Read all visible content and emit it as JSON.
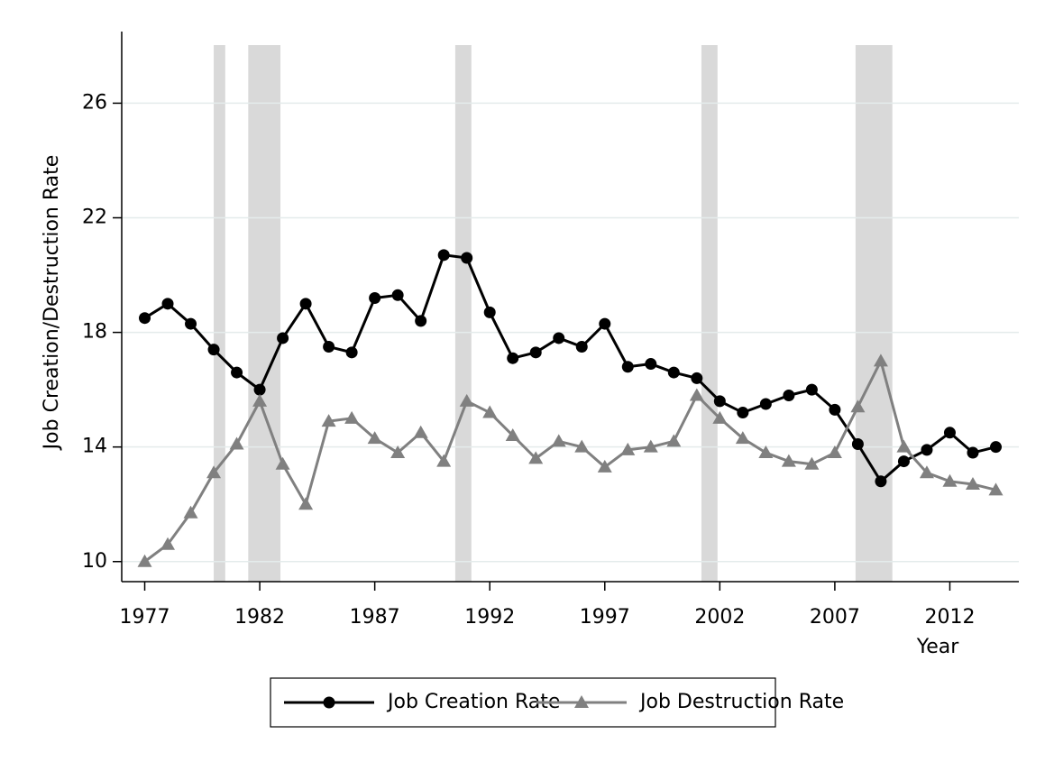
{
  "chart_data": {
    "type": "line",
    "y_label": "Job Creation/Destruction Rate",
    "x_label": "Year",
    "x": [
      1977,
      1978,
      1979,
      1980,
      1981,
      1982,
      1983,
      1984,
      1985,
      1986,
      1987,
      1988,
      1989,
      1990,
      1991,
      1992,
      1993,
      1994,
      1995,
      1996,
      1997,
      1998,
      1999,
      2000,
      2001,
      2002,
      2003,
      2004,
      2005,
      2006,
      2007,
      2008,
      2009,
      2010,
      2011,
      2012,
      2013,
      2014
    ],
    "series": [
      {
        "name": "Job Creation Rate",
        "color": "#000000",
        "marker": "circle",
        "values": [
          18.5,
          19.0,
          18.3,
          17.4,
          16.6,
          16.0,
          17.8,
          19.0,
          17.5,
          17.3,
          19.2,
          19.3,
          18.4,
          20.7,
          20.6,
          18.7,
          17.1,
          17.3,
          17.8,
          17.5,
          18.3,
          16.8,
          16.9,
          16.6,
          16.4,
          15.6,
          15.2,
          15.5,
          15.8,
          16.0,
          15.3,
          14.1,
          12.8,
          13.5,
          13.9,
          14.5,
          13.8,
          14.0
        ]
      },
      {
        "name": "Job Destruction Rate",
        "color": "#808080",
        "marker": "triangle",
        "values": [
          10.0,
          10.6,
          11.7,
          13.1,
          14.1,
          15.6,
          13.4,
          12.0,
          14.9,
          15.0,
          14.3,
          13.8,
          14.5,
          13.5,
          15.6,
          15.2,
          14.4,
          13.6,
          14.2,
          14.0,
          13.3,
          13.9,
          14.0,
          14.2,
          15.8,
          15.0,
          14.3,
          13.8,
          13.5,
          13.4,
          13.8,
          15.4,
          17.0,
          14.0,
          13.1,
          12.8,
          12.7,
          12.5
        ]
      }
    ],
    "shaded_periods": [
      [
        1980,
        1980.5
      ],
      [
        1981.5,
        1982.9
      ],
      [
        1990.5,
        1991.2
      ],
      [
        2001.2,
        2001.9
      ],
      [
        2007.9,
        2009.5
      ]
    ],
    "shade_color": "#d9d9d9",
    "xlim": [
      1976,
      2015
    ],
    "xticks": [
      1977,
      1982,
      1987,
      1992,
      1997,
      2002,
      2007,
      2012
    ],
    "ylim": [
      9.3,
      28.5
    ],
    "yticks": [
      10,
      14,
      18,
      22,
      26
    ],
    "grid": true,
    "legend": "bottom"
  }
}
